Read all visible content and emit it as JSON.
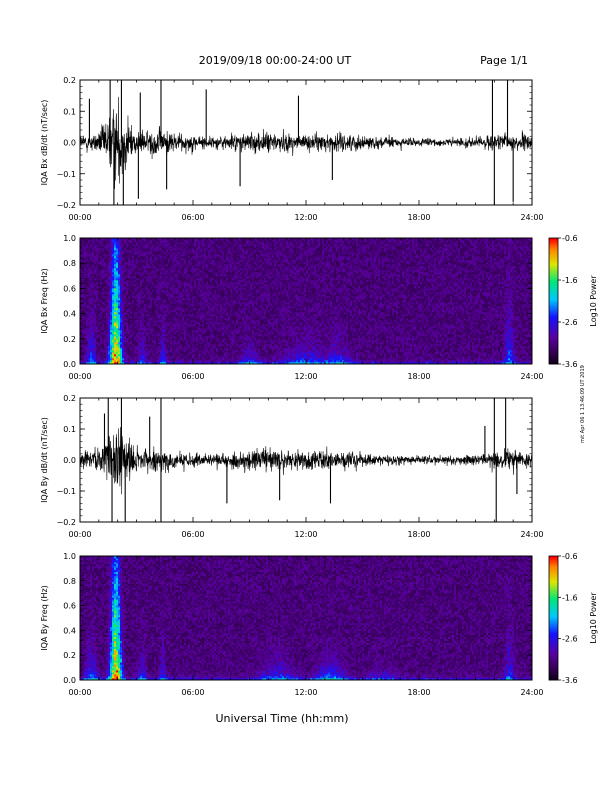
{
  "header": {
    "date_range": "2019/09/18  00:00-24:00 UT",
    "page": "Page 1/1"
  },
  "xlabel": "Universal Time (hh:mm)",
  "credit": "mit Apr 06 1 13:46:09 UT 2019",
  "chart_data": [
    {
      "type": "line",
      "panel": "bx_dbdt",
      "ylabel": "IQA Bx dB/dt (nT/sec)",
      "x_ticks": [
        "00:00",
        "06:00",
        "12:00",
        "18:00",
        "24:00"
      ],
      "y_ticks": [
        "0.2",
        "0.1",
        "0.0",
        "−0.1",
        "−0.2"
      ],
      "xlim": [
        0,
        24
      ],
      "ylim": [
        -0.2,
        0.2
      ],
      "envelope": {
        "unit_hours": 1,
        "hours": [
          0,
          1,
          2,
          3,
          4,
          5,
          6,
          7,
          8,
          9,
          10,
          11,
          12,
          13,
          14,
          15,
          16,
          17,
          18,
          19,
          20,
          21,
          22,
          23,
          24
        ],
        "amplitude": [
          0.04,
          0.05,
          0.2,
          0.05,
          0.07,
          0.05,
          0.04,
          0.03,
          0.04,
          0.05,
          0.05,
          0.045,
          0.04,
          0.04,
          0.045,
          0.035,
          0.03,
          0.025,
          0.02,
          0.02,
          0.02,
          0.025,
          0.04,
          0.05,
          0.03
        ]
      },
      "spikes": [
        {
          "x": 0.5,
          "y": 0.14
        },
        {
          "x": 1.6,
          "y": 0.2
        },
        {
          "x": 1.8,
          "y": -0.2
        },
        {
          "x": 2.2,
          "y": 0.2
        },
        {
          "x": 2.3,
          "y": -0.2
        },
        {
          "x": 3.1,
          "y": -0.18
        },
        {
          "x": 3.2,
          "y": 0.16
        },
        {
          "x": 4.3,
          "y": 0.2
        },
        {
          "x": 4.6,
          "y": -0.15
        },
        {
          "x": 6.7,
          "y": 0.17
        },
        {
          "x": 8.5,
          "y": -0.14
        },
        {
          "x": 11.6,
          "y": 0.15
        },
        {
          "x": 13.4,
          "y": -0.12
        },
        {
          "x": 21.9,
          "y": 0.2
        },
        {
          "x": 22.0,
          "y": -0.2
        },
        {
          "x": 22.7,
          "y": 0.2
        },
        {
          "x": 23.0,
          "y": -0.19
        }
      ]
    },
    {
      "type": "heatmap",
      "panel": "bx_spectrogram",
      "ylabel": "IQA Bx Freq (Hz)",
      "colorbar_label": "Log10 Power",
      "colorbar_ticks": [
        "-0.6",
        "-1.6",
        "-2.6",
        "-3.6"
      ],
      "x_ticks": [
        "00:00",
        "06:00",
        "12:00",
        "18:00",
        "24:00"
      ],
      "y_ticks": [
        "1.0",
        "0.8",
        "0.6",
        "0.4",
        "0.2",
        "0.0"
      ],
      "xlim": [
        0,
        24
      ],
      "ylim": [
        0,
        1.0
      ],
      "clim": [
        -3.6,
        -0.6
      ],
      "activity": [
        {
          "center": 1.9,
          "width": 0.35,
          "strength": 1.0,
          "reach": 0.9
        },
        {
          "center": 0.6,
          "width": 0.3,
          "strength": 0.35,
          "reach": 0.25
        },
        {
          "center": 3.3,
          "width": 0.3,
          "strength": 0.3,
          "reach": 0.15
        },
        {
          "center": 4.4,
          "width": 0.2,
          "strength": 0.35,
          "reach": 0.2
        },
        {
          "center": 9.0,
          "width": 0.6,
          "strength": 0.3,
          "reach": 0.1
        },
        {
          "center": 12.0,
          "width": 1.6,
          "strength": 0.3,
          "reach": 0.12
        },
        {
          "center": 13.6,
          "width": 1.0,
          "strength": 0.35,
          "reach": 0.12
        },
        {
          "center": 22.8,
          "width": 0.3,
          "strength": 0.35,
          "reach": 0.35
        }
      ]
    },
    {
      "type": "line",
      "panel": "by_dbdt",
      "ylabel": "IQA By dB/dt (nT/sec)",
      "x_ticks": [
        "00:00",
        "06:00",
        "12:00",
        "18:00",
        "24:00"
      ],
      "y_ticks": [
        "0.2",
        "0.1",
        "0.0",
        "−0.1",
        "−0.2"
      ],
      "xlim": [
        0,
        24
      ],
      "ylim": [
        -0.2,
        0.2
      ],
      "envelope": {
        "unit_hours": 1,
        "hours": [
          0,
          1,
          2,
          3,
          4,
          5,
          6,
          7,
          8,
          9,
          10,
          11,
          12,
          13,
          14,
          15,
          16,
          17,
          18,
          19,
          20,
          21,
          22,
          23,
          24
        ],
        "amplitude": [
          0.035,
          0.06,
          0.2,
          0.06,
          0.07,
          0.04,
          0.035,
          0.03,
          0.04,
          0.05,
          0.06,
          0.055,
          0.05,
          0.045,
          0.04,
          0.035,
          0.025,
          0.02,
          0.02,
          0.02,
          0.02,
          0.03,
          0.04,
          0.05,
          0.03
        ]
      },
      "spikes": [
        {
          "x": 1.3,
          "y": 0.15
        },
        {
          "x": 1.5,
          "y": 0.2
        },
        {
          "x": 1.7,
          "y": -0.2
        },
        {
          "x": 2.2,
          "y": 0.2
        },
        {
          "x": 2.4,
          "y": -0.2
        },
        {
          "x": 3.7,
          "y": 0.14
        },
        {
          "x": 4.3,
          "y": 0.2
        },
        {
          "x": 4.3,
          "y": -0.2
        },
        {
          "x": 7.8,
          "y": -0.14
        },
        {
          "x": 10.6,
          "y": -0.13
        },
        {
          "x": 13.3,
          "y": -0.14
        },
        {
          "x": 21.5,
          "y": 0.11
        },
        {
          "x": 22.0,
          "y": 0.2
        },
        {
          "x": 22.1,
          "y": -0.2
        },
        {
          "x": 22.6,
          "y": 0.2
        },
        {
          "x": 23.2,
          "y": -0.11
        }
      ]
    },
    {
      "type": "heatmap",
      "panel": "by_spectrogram",
      "ylabel": "IQA By Freq (Hz)",
      "colorbar_label": "Log10 Power",
      "colorbar_ticks": [
        "-0.6",
        "-1.6",
        "-2.6",
        "-3.6"
      ],
      "x_ticks": [
        "00:00",
        "06:00",
        "12:00",
        "18:00",
        "24:00"
      ],
      "y_ticks": [
        "1.0",
        "0.8",
        "0.6",
        "0.4",
        "0.2",
        "0.0"
      ],
      "xlim": [
        0,
        24
      ],
      "ylim": [
        0,
        1.0
      ],
      "clim": [
        -3.6,
        -0.6
      ],
      "activity": [
        {
          "center": 1.9,
          "width": 0.35,
          "strength": 1.0,
          "reach": 0.95
        },
        {
          "center": 0.6,
          "width": 0.4,
          "strength": 0.35,
          "reach": 0.2
        },
        {
          "center": 3.3,
          "width": 0.3,
          "strength": 0.3,
          "reach": 0.15
        },
        {
          "center": 4.4,
          "width": 0.2,
          "strength": 0.3,
          "reach": 0.2
        },
        {
          "center": 10.5,
          "width": 1.2,
          "strength": 0.3,
          "reach": 0.12
        },
        {
          "center": 13.3,
          "width": 1.0,
          "strength": 0.4,
          "reach": 0.12
        },
        {
          "center": 16.0,
          "width": 1.0,
          "strength": 0.2,
          "reach": 0.08
        },
        {
          "center": 22.8,
          "width": 0.3,
          "strength": 0.3,
          "reach": 0.3
        }
      ]
    }
  ]
}
